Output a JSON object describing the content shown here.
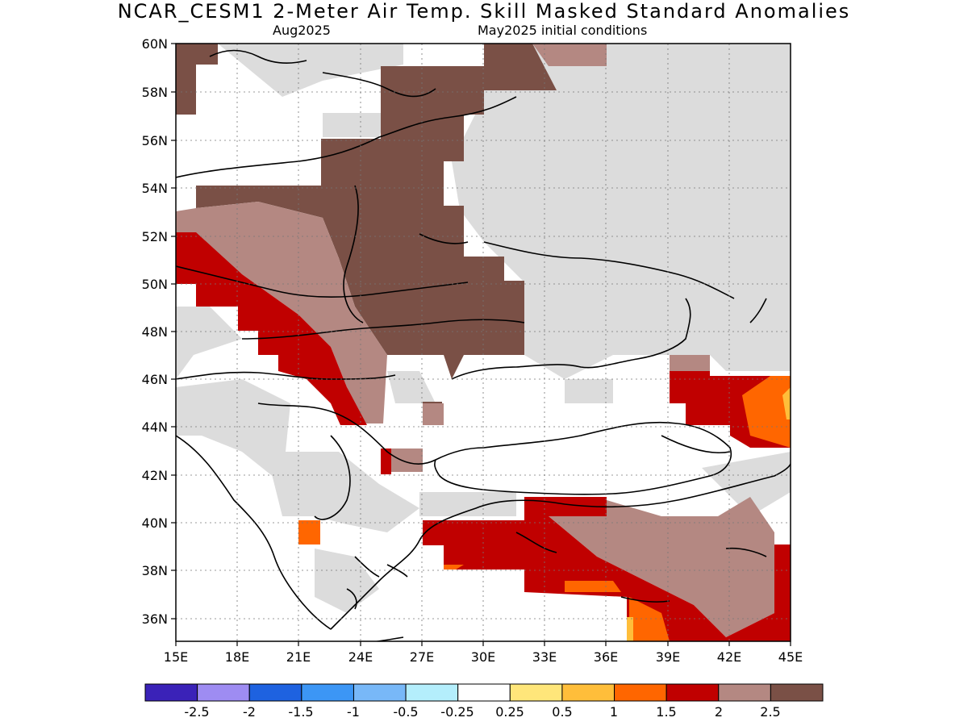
{
  "title": "NCAR_CESM1 2-Meter Air Temp. Skill Masked Standard Anomalies",
  "subtitle_left": "Aug2025",
  "subtitle_right": "May2025 initial conditions",
  "lat_labels": [
    "60N",
    "58N",
    "56N",
    "54N",
    "52N",
    "50N",
    "48N",
    "46N",
    "44N",
    "42N",
    "40N",
    "38N",
    "36N"
  ],
  "lon_labels": [
    "15E",
    "18E",
    "21E",
    "24E",
    "27E",
    "30E",
    "33E",
    "36E",
    "39E",
    "42E",
    "45E"
  ],
  "colorbar": {
    "colors": [
      "#3a22b8",
      "#9e8cf2",
      "#1e62e0",
      "#3c96f5",
      "#78b8f8",
      "#b4eefc",
      "#ffffff",
      "#ffe67a",
      "#ffbe3a",
      "#ff6600",
      "#c00000",
      "#b48882",
      "#7a5046"
    ],
    "labels": [
      "-2.5",
      "-2",
      "-1.5",
      "-1",
      "-0.5",
      "-0.25",
      "0.25",
      "0.5",
      "1",
      "1.5",
      "2",
      "2.5"
    ]
  },
  "legend_colors": {
    "masked": "#dcdcdc",
    "above_2_5": "#7a5046",
    "2_to_2_5": "#b48882",
    "1_5_to_2": "#c00000",
    "1_to_1_5": "#ff6600",
    "0_5_to_1": "#ffbe3a"
  }
}
